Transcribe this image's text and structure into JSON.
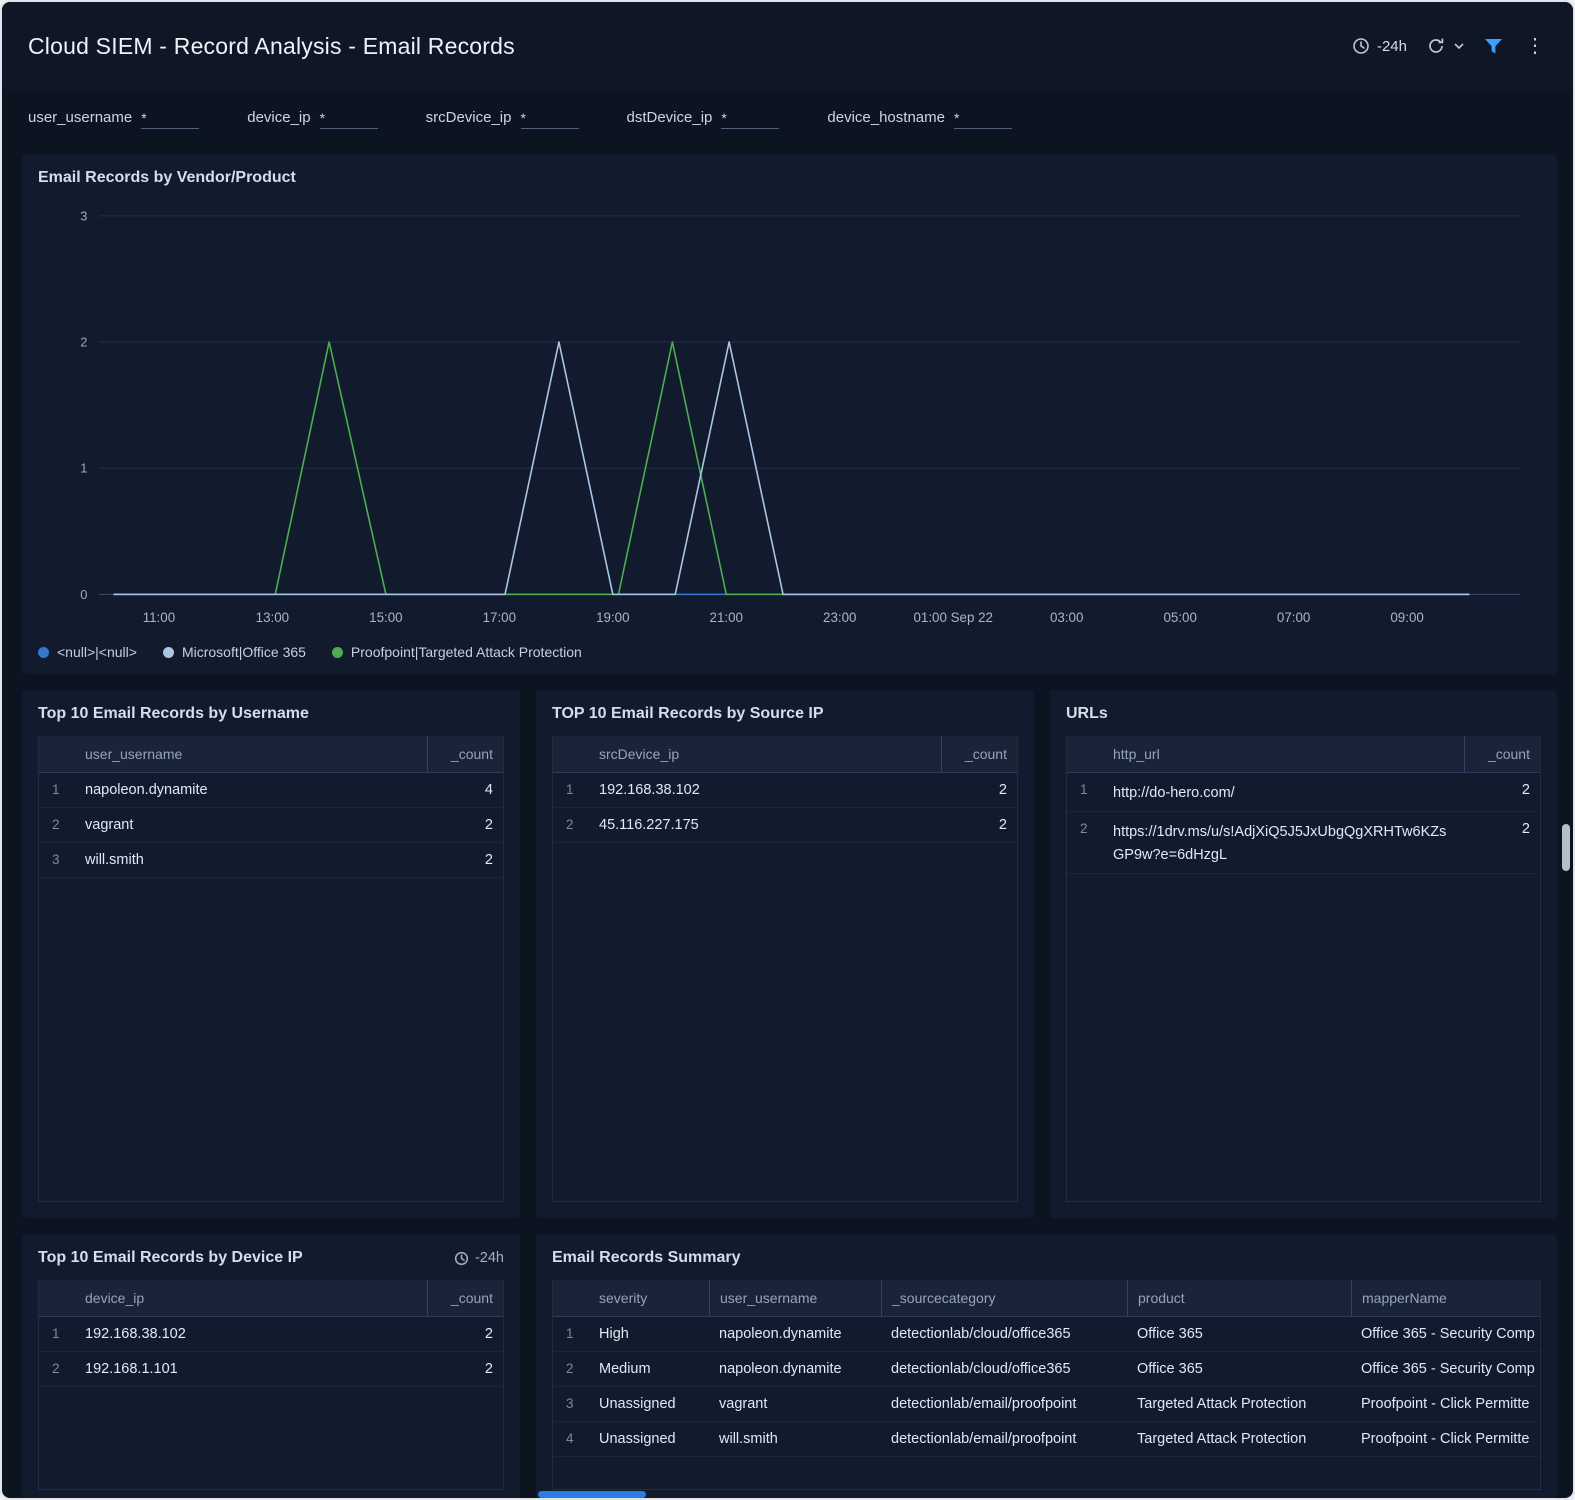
{
  "header": {
    "title": "Cloud SIEM - Record Analysis - Email Records",
    "time_range": "-24h"
  },
  "filters": [
    {
      "label": "user_username",
      "required": "*",
      "value": ""
    },
    {
      "label": "device_ip",
      "required": "*",
      "value": ""
    },
    {
      "label": "srcDevice_ip",
      "required": "*",
      "value": ""
    },
    {
      "label": "dstDevice_ip",
      "required": "*",
      "value": ""
    },
    {
      "label": "device_hostname",
      "required": "*",
      "value": ""
    }
  ],
  "chart_panel": {
    "title": "Email Records by Vendor/Product"
  },
  "chart_data": {
    "type": "line",
    "title": "Email Records by Vendor/Product",
    "xlabel": "",
    "ylabel": "",
    "xlim": [
      9.95,
      34.75
    ],
    "ylim": [
      0,
      3
    ],
    "grid": true,
    "legend_position": "bottom",
    "y_ticks": [
      0,
      1,
      2,
      3
    ],
    "x_ticks": [
      {
        "x": 11,
        "label": "11:00"
      },
      {
        "x": 13,
        "label": "13:00"
      },
      {
        "x": 15,
        "label": "15:00"
      },
      {
        "x": 17,
        "label": "17:00"
      },
      {
        "x": 19,
        "label": "19:00"
      },
      {
        "x": 21,
        "label": "21:00"
      },
      {
        "x": 23,
        "label": "23:00"
      },
      {
        "x": 25,
        "label": "01:00 Sep 22"
      },
      {
        "x": 27,
        "label": "03:00"
      },
      {
        "x": 29,
        "label": "05:00"
      },
      {
        "x": 31,
        "label": "07:00"
      },
      {
        "x": 33,
        "label": "09:00"
      }
    ],
    "legend": [
      {
        "label": "<null>|<null>",
        "color": "#3579c8"
      },
      {
        "label": "Microsoft|Office 365",
        "color": "#a9c7e4"
      },
      {
        "label": "Proofpoint|Targeted Attack Protection",
        "color": "#4cae4f"
      }
    ],
    "series": [
      {
        "name": "<null>|<null>",
        "color": "#3579c8",
        "points": [
          [
            10.2,
            0
          ],
          [
            34.1,
            0
          ]
        ]
      },
      {
        "name": "Proofpoint|Targeted Attack Protection",
        "color": "#4cae4f",
        "points": [
          [
            10.2,
            0
          ],
          [
            13.05,
            0
          ],
          [
            14.0,
            2
          ],
          [
            15.0,
            0
          ],
          [
            19.1,
            0
          ],
          [
            20.05,
            2
          ],
          [
            21.0,
            0
          ],
          [
            34.1,
            0
          ]
        ]
      },
      {
        "name": "Microsoft|Office 365",
        "color": "#a9c7e4",
        "points": [
          [
            10.2,
            0
          ],
          [
            17.1,
            0
          ],
          [
            18.05,
            2
          ],
          [
            19.0,
            0
          ],
          [
            20.1,
            0
          ],
          [
            21.05,
            2
          ],
          [
            22.0,
            0
          ],
          [
            34.1,
            0
          ]
        ]
      }
    ]
  },
  "panels": {
    "username": {
      "title": "Top 10 Email Records by Username",
      "columns": [
        "user_username",
        "_count"
      ],
      "rows": [
        [
          "napoleon.dynamite",
          "4"
        ],
        [
          "vagrant",
          "2"
        ],
        [
          "will.smith",
          "2"
        ]
      ]
    },
    "source_ip": {
      "title": "TOP 10 Email Records by Source IP",
      "columns": [
        "srcDevice_ip",
        "_count"
      ],
      "rows": [
        [
          "192.168.38.102",
          "2"
        ],
        [
          "45.116.227.175",
          "2"
        ]
      ]
    },
    "urls": {
      "title": "URLs",
      "columns": [
        "http_url",
        "_count"
      ],
      "rows": [
        [
          "http://do-hero.com/",
          "2"
        ],
        [
          "https://1drv.ms/u/s!AdjXiQ5J5JxUbgQgXRHTw6KZsGP9w?e=6dHzgL",
          "2"
        ]
      ]
    },
    "device_ip": {
      "title": "Top 10 Email Records by Device IP",
      "time_range": "-24h",
      "columns": [
        "device_ip",
        "_count"
      ],
      "rows": [
        [
          "192.168.38.102",
          "2"
        ],
        [
          "192.168.1.101",
          "2"
        ]
      ]
    },
    "summary": {
      "title": "Email Records Summary",
      "columns": [
        "severity",
        "user_username",
        "_sourcecategory",
        "product",
        "mapperName"
      ],
      "rows": [
        [
          "High",
          "napoleon.dynamite",
          "detectionlab/cloud/office365",
          "Office 365",
          "Office 365 - Security Comp"
        ],
        [
          "Medium",
          "napoleon.dynamite",
          "detectionlab/cloud/office365",
          "Office 365",
          "Office 365 - Security Comp"
        ],
        [
          "Unassigned",
          "vagrant",
          "detectionlab/email/proofpoint",
          "Targeted Attack Protection",
          "Proofpoint - Click Permitte"
        ],
        [
          "Unassigned",
          "will.smith",
          "detectionlab/email/proofpoint",
          "Targeted Attack Protection",
          "Proofpoint - Click Permitte"
        ]
      ]
    }
  }
}
